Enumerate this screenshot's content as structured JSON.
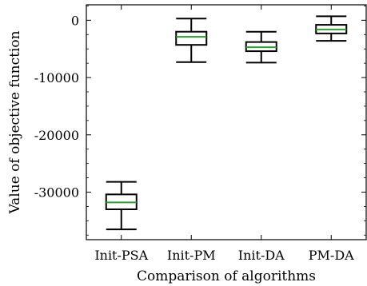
{
  "chart_data": {
    "type": "boxplot",
    "title": "",
    "xlabel": "Comparison of algorithms",
    "ylabel": "Value of objective function",
    "ylim": [
      -38300,
      2700
    ],
    "yticks": [
      0,
      -10000,
      -20000,
      -30000
    ],
    "ytick_labels": [
      "0",
      "-10000",
      "-20000",
      "-30000"
    ],
    "grid": false,
    "categories": [
      "Init-PSA",
      "Init-PM",
      "Init-DA",
      "PM-DA"
    ],
    "boxes": [
      {
        "category": "Init-PSA",
        "whisker_low": -36500,
        "q1": -33000,
        "median": -31800,
        "q3": -30400,
        "whisker_high": -28200
      },
      {
        "category": "Init-PM",
        "whisker_low": -7300,
        "q1": -4300,
        "median": -2900,
        "q3": -2000,
        "whisker_high": 300
      },
      {
        "category": "Init-DA",
        "whisker_low": -7400,
        "q1": -5400,
        "median": -4700,
        "q3": -3800,
        "whisker_high": -2000
      },
      {
        "category": "PM-DA",
        "whisker_low": -3600,
        "q1": -2300,
        "median": -1600,
        "q3": -800,
        "whisker_high": 700
      }
    ],
    "colors": {
      "box": "#000000",
      "median": "#2ca02c"
    }
  }
}
